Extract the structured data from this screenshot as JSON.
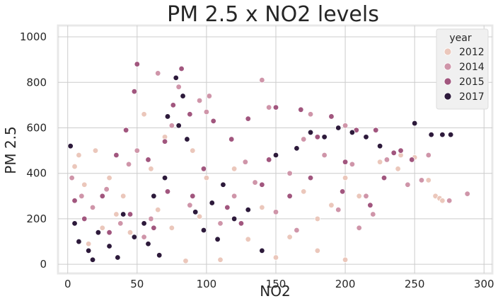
{
  "chart_data": {
    "type": "scatter",
    "title": "PM 2.5 x NO2 levels",
    "xlabel": "NO2",
    "ylabel": "PM 2.5",
    "xlim": [
      -7,
      306
    ],
    "ylim": [
      -40,
      1050
    ],
    "xticks": [
      0,
      50,
      100,
      150,
      200,
      250,
      300
    ],
    "xtick_labels": [
      "0",
      "50",
      "100",
      "150",
      "200",
      "250",
      "300"
    ],
    "yticks": [
      0,
      200,
      400,
      600,
      800,
      1000
    ],
    "ytick_labels": [
      "0",
      "200",
      "400",
      "600",
      "800",
      "1000"
    ],
    "grid": true,
    "legend": {
      "title": "year",
      "placement": "top-right"
    },
    "series": [
      {
        "name": "2012",
        "color": "#ebc7bb",
        "points": [
          [
            5,
            430
          ],
          [
            8,
            480
          ],
          [
            12,
            350
          ],
          [
            20,
            500
          ],
          [
            30,
            380
          ],
          [
            40,
            300
          ],
          [
            55,
            660
          ],
          [
            60,
            420
          ],
          [
            70,
            560
          ],
          [
            90,
            500
          ],
          [
            100,
            380
          ],
          [
            120,
            420
          ],
          [
            140,
            250
          ],
          [
            160,
            120
          ],
          [
            180,
            200
          ],
          [
            200,
            380
          ],
          [
            210,
            300
          ],
          [
            225,
            450
          ],
          [
            240,
            480
          ],
          [
            250,
            470
          ],
          [
            265,
            300
          ],
          [
            268,
            290
          ],
          [
            270,
            280
          ],
          [
            200,
            20
          ],
          [
            180,
            60
          ],
          [
            150,
            30
          ],
          [
            110,
            20
          ],
          [
            85,
            15
          ],
          [
            260,
            370
          ],
          [
            238,
            420
          ],
          [
            45,
            140
          ],
          [
            35,
            220
          ],
          [
            25,
            160
          ],
          [
            15,
            90
          ],
          [
            65,
            240
          ],
          [
            75,
            160
          ],
          [
            95,
            210
          ],
          [
            130,
            110
          ],
          [
            170,
            320
          ],
          [
            190,
            260
          ]
        ]
      },
      {
        "name": "2014",
        "color": "#cf95a9",
        "points": [
          [
            3,
            380
          ],
          [
            10,
            300
          ],
          [
            18,
            250
          ],
          [
            28,
            330
          ],
          [
            44,
            440
          ],
          [
            50,
            500
          ],
          [
            65,
            840
          ],
          [
            75,
            610
          ],
          [
            80,
            780
          ],
          [
            95,
            720
          ],
          [
            100,
            670
          ],
          [
            102,
            740
          ],
          [
            128,
            450
          ],
          [
            140,
            810
          ],
          [
            145,
            690
          ],
          [
            170,
            550
          ],
          [
            175,
            660
          ],
          [
            200,
            610
          ],
          [
            205,
            440
          ],
          [
            215,
            300
          ],
          [
            220,
            220
          ],
          [
            230,
            460
          ],
          [
            245,
            350
          ],
          [
            255,
            370
          ],
          [
            260,
            480
          ],
          [
            275,
            280
          ],
          [
            288,
            310
          ],
          [
            60,
            200
          ],
          [
            120,
            300
          ],
          [
            160,
            400
          ],
          [
            185,
            480
          ],
          [
            195,
            240
          ],
          [
            38,
            180
          ],
          [
            55,
            120
          ],
          [
            88,
            260
          ],
          [
            110,
            180
          ],
          [
            135,
            360
          ],
          [
            150,
            230
          ],
          [
            165,
            150
          ],
          [
            210,
            160
          ]
        ]
      },
      {
        "name": "2015",
        "color": "#a1567e",
        "points": [
          [
            5,
            280
          ],
          [
            12,
            200
          ],
          [
            25,
            300
          ],
          [
            35,
            480
          ],
          [
            42,
            590
          ],
          [
            48,
            760
          ],
          [
            50,
            880
          ],
          [
            58,
            460
          ],
          [
            70,
            540
          ],
          [
            76,
            700
          ],
          [
            82,
            860
          ],
          [
            88,
            660
          ],
          [
            105,
            630
          ],
          [
            118,
            550
          ],
          [
            130,
            640
          ],
          [
            150,
            690
          ],
          [
            168,
            680
          ],
          [
            180,
            560
          ],
          [
            190,
            650
          ],
          [
            208,
            590
          ],
          [
            222,
            590
          ],
          [
            235,
            490
          ],
          [
            240,
            500
          ],
          [
            248,
            460
          ],
          [
            90,
            300
          ],
          [
            115,
            250
          ],
          [
            140,
            350
          ],
          [
            160,
            300
          ],
          [
            200,
            450
          ],
          [
            228,
            380
          ],
          [
            30,
            140
          ],
          [
            45,
            220
          ],
          [
            62,
            160
          ],
          [
            72,
            320
          ],
          [
            98,
            420
          ],
          [
            125,
            180
          ],
          [
            145,
            460
          ],
          [
            175,
            380
          ],
          [
            198,
            320
          ],
          [
            218,
            260
          ]
        ]
      },
      {
        "name": "2017",
        "color": "#2d1a3b",
        "points": [
          [
            2,
            520
          ],
          [
            5,
            180
          ],
          [
            8,
            100
          ],
          [
            15,
            60
          ],
          [
            22,
            140
          ],
          [
            30,
            80
          ],
          [
            40,
            220
          ],
          [
            48,
            120
          ],
          [
            55,
            180
          ],
          [
            62,
            300
          ],
          [
            70,
            380
          ],
          [
            72,
            650
          ],
          [
            78,
            820
          ],
          [
            80,
            610
          ],
          [
            83,
            740
          ],
          [
            86,
            550
          ],
          [
            92,
            230
          ],
          [
            98,
            150
          ],
          [
            104,
            270
          ],
          [
            112,
            350
          ],
          [
            120,
            200
          ],
          [
            130,
            240
          ],
          [
            150,
            480
          ],
          [
            165,
            510
          ],
          [
            175,
            580
          ],
          [
            185,
            560
          ],
          [
            195,
            600
          ],
          [
            205,
            580
          ],
          [
            215,
            560
          ],
          [
            225,
            520
          ],
          [
            250,
            620
          ],
          [
            262,
            570
          ],
          [
            270,
            570
          ],
          [
            276,
            570
          ],
          [
            66,
            40
          ],
          [
            58,
            90
          ],
          [
            36,
            30
          ],
          [
            18,
            20
          ],
          [
            108,
            110
          ],
          [
            140,
            60
          ]
        ]
      }
    ]
  }
}
